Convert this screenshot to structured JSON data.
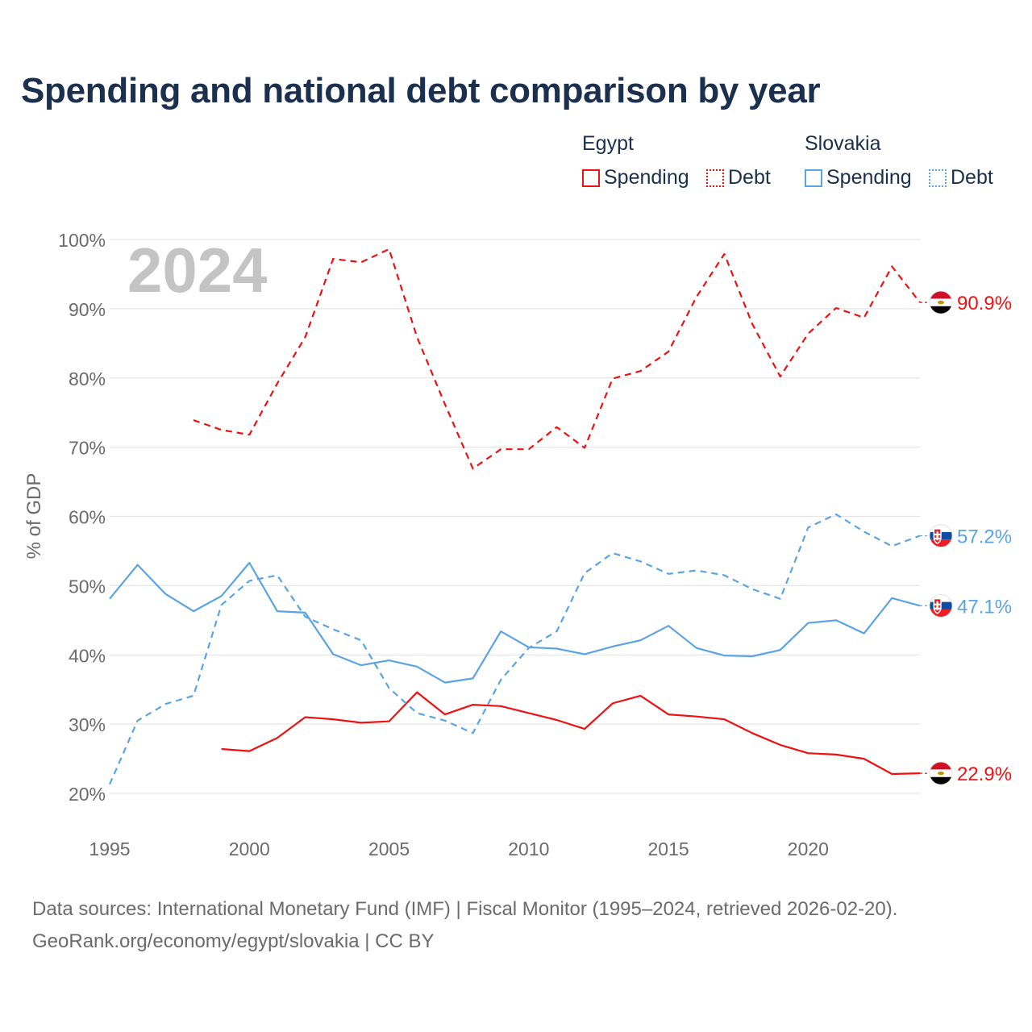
{
  "title": "Spending and national debt comparison by year",
  "legend": {
    "egypt": {
      "title": "Egypt",
      "spending_label": "Spending",
      "debt_label": "Debt",
      "color": "#ee1111"
    },
    "slovakia": {
      "title": "Slovakia",
      "spending_label": "Spending",
      "debt_label": "Debt",
      "color": "#5aa4e6"
    }
  },
  "sources": {
    "line1": "Data sources: International Monetary Fund (IMF) | Fiscal Monitor (1995–2024, retrieved 2026-02-20).",
    "line2": "GeoRank.org/economy/egypt/slovakia | CC BY"
  },
  "chart_data": {
    "type": "line",
    "ylabel": "% of GDP",
    "xlabel": "",
    "year_watermark": "2024",
    "xlim": [
      1995,
      2024
    ],
    "ylim": [
      20,
      100
    ],
    "x_ticks": [
      1995,
      2000,
      2005,
      2010,
      2015,
      2020
    ],
    "y_ticks": [
      20,
      30,
      40,
      50,
      60,
      70,
      80,
      90,
      100
    ],
    "y_tick_suffix": "%",
    "grid": true,
    "series": [
      {
        "id": "egypt-debt",
        "name": "Egypt Debt",
        "country": "Egypt",
        "color": "#ee1111",
        "dashed": true,
        "end_label": "90.9%",
        "x": [
          1998,
          1999,
          2000,
          2001,
          2002,
          2003,
          2004,
          2005,
          2006,
          2007,
          2008,
          2009,
          2010,
          2011,
          2012,
          2013,
          2014,
          2015,
          2016,
          2017,
          2018,
          2019,
          2020,
          2021,
          2022,
          2023,
          2024
        ],
        "values": [
          73.9,
          72.5,
          71.8,
          79.2,
          85.9,
          97.2,
          96.7,
          98.6,
          85.9,
          76.2,
          66.9,
          69.7,
          69.7,
          72.9,
          69.9,
          79.9,
          81.0,
          83.8,
          91.7,
          97.9,
          87.8,
          80.2,
          86.4,
          90.1,
          88.7,
          96.1,
          90.9
        ]
      },
      {
        "id": "egypt-spending",
        "name": "Egypt Spending",
        "country": "Egypt",
        "color": "#ee1111",
        "dashed": false,
        "end_label": "22.9%",
        "x": [
          1999,
          2000,
          2001,
          2002,
          2003,
          2004,
          2005,
          2006,
          2007,
          2008,
          2009,
          2010,
          2011,
          2012,
          2013,
          2014,
          2015,
          2016,
          2017,
          2018,
          2019,
          2020,
          2021,
          2022,
          2023,
          2024
        ],
        "values": [
          26.4,
          26.1,
          28.0,
          31.0,
          30.7,
          30.2,
          30.4,
          34.6,
          31.4,
          32.8,
          32.6,
          31.6,
          30.6,
          29.3,
          33.0,
          34.1,
          31.4,
          31.1,
          30.7,
          28.7,
          27.0,
          25.8,
          25.6,
          25.0,
          22.8,
          22.9
        ]
      },
      {
        "id": "slovakia-debt",
        "name": "Slovakia Debt",
        "country": "Slovakia",
        "color": "#5aa4e6",
        "dashed": true,
        "end_label": "57.2%",
        "x": [
          1995,
          1996,
          1997,
          1998,
          1999,
          2000,
          2001,
          2002,
          2003,
          2004,
          2005,
          2006,
          2007,
          2008,
          2009,
          2010,
          2011,
          2012,
          2013,
          2014,
          2015,
          2016,
          2017,
          2018,
          2019,
          2020,
          2021,
          2022,
          2023,
          2024
        ],
        "values": [
          21.3,
          30.5,
          32.9,
          34.1,
          47.2,
          50.7,
          51.5,
          45.5,
          43.7,
          42.1,
          35.2,
          31.6,
          30.5,
          28.7,
          36.4,
          41.0,
          43.4,
          51.8,
          54.7,
          53.5,
          51.7,
          52.2,
          51.5,
          49.5,
          48.1,
          58.4,
          60.3,
          57.8,
          55.7,
          57.2
        ]
      },
      {
        "id": "slovakia-spending",
        "name": "Slovakia Spending",
        "country": "Slovakia",
        "color": "#5aa4e6",
        "dashed": false,
        "end_label": "47.1%",
        "x": [
          1995,
          1996,
          1997,
          1998,
          1999,
          2000,
          2001,
          2002,
          2003,
          2004,
          2005,
          2006,
          2007,
          2008,
          2009,
          2010,
          2011,
          2012,
          2013,
          2014,
          2015,
          2016,
          2017,
          2018,
          2019,
          2020,
          2021,
          2022,
          2023,
          2024
        ],
        "values": [
          48.1,
          53.0,
          48.8,
          46.3,
          48.5,
          53.3,
          46.3,
          46.1,
          40.1,
          38.5,
          39.2,
          38.3,
          36.0,
          36.6,
          43.4,
          41.1,
          40.9,
          40.1,
          41.2,
          42.1,
          44.2,
          41.0,
          39.9,
          39.8,
          40.7,
          44.6,
          45.0,
          43.1,
          48.2,
          47.1
        ]
      }
    ]
  }
}
